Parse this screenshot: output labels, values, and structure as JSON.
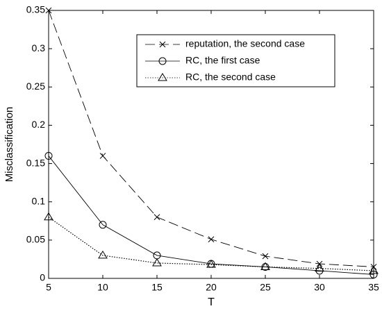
{
  "chart_data": {
    "type": "line",
    "x": [
      5,
      10,
      15,
      20,
      25,
      30,
      35
    ],
    "xlabel": "T",
    "ylabel": "Misclassification",
    "xlim": [
      5,
      35
    ],
    "xticks": [
      5,
      10,
      15,
      20,
      25,
      30,
      35
    ],
    "ylim": [
      0,
      0.35
    ],
    "yticks": [
      0,
      0.05,
      0.1,
      0.15,
      0.2,
      0.25,
      0.3,
      0.35
    ],
    "legend": "upper right",
    "series": [
      {
        "name": "reputation, the second case",
        "color": "#000000",
        "linestyle": "dashed",
        "marker": "x",
        "values": [
          0.35,
          0.16,
          0.08,
          0.051,
          0.029,
          0.019,
          0.015
        ]
      },
      {
        "name": "RC, the first case",
        "color": "#000000",
        "linestyle": "solid",
        "marker": "circle",
        "values": [
          0.16,
          0.07,
          0.03,
          0.019,
          0.015,
          0.01,
          0.005
        ]
      },
      {
        "name": "RC, the second case",
        "color": "#000000",
        "linestyle": "dotted",
        "marker": "triangle",
        "values": [
          0.08,
          0.03,
          0.02,
          0.018,
          0.015,
          0.013,
          0.01
        ]
      }
    ]
  }
}
